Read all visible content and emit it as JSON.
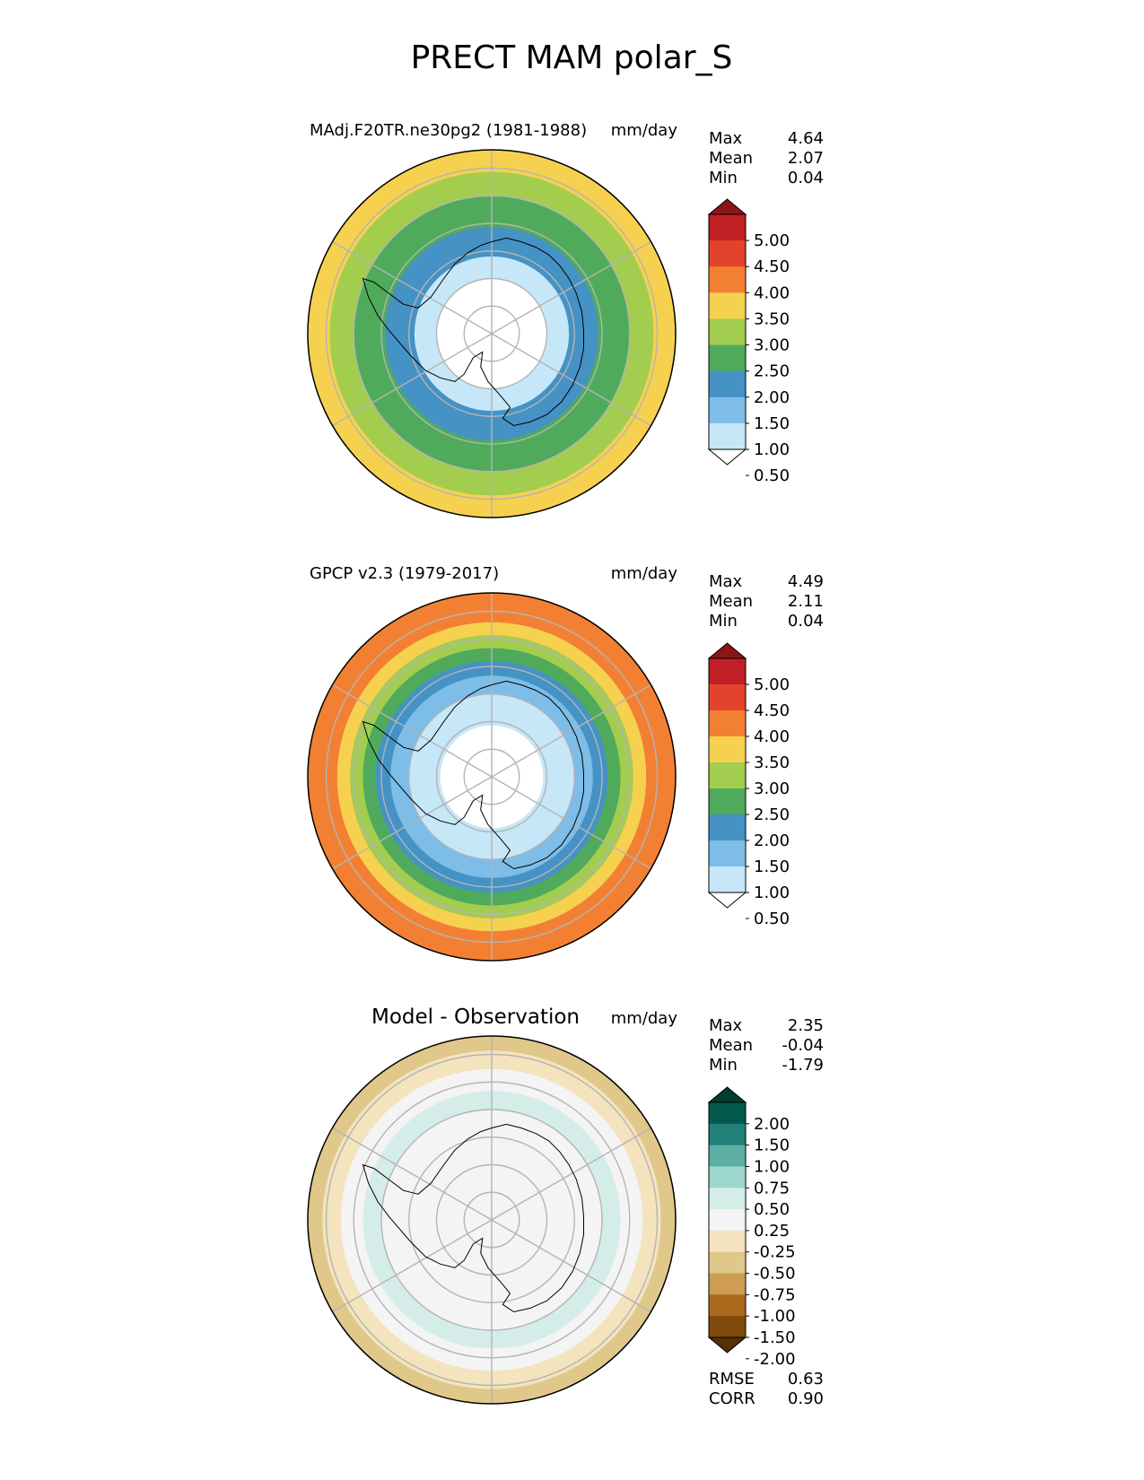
{
  "figure_title": "PRECT MAM polar_S",
  "colors": {
    "precip_levels": [
      "#ffffff",
      "#c6e7f8",
      "#7dbde8",
      "#4592c5",
      "#4fab5b",
      "#a3cd4e",
      "#f6d14f",
      "#f38032",
      "#e2432d",
      "#c11f26",
      "#8c1517"
    ],
    "diff_levels": [
      "#543005",
      "#7f4b0a",
      "#ab6a1e",
      "#cd9d53",
      "#e0c88a",
      "#f3e4be",
      "#f4f4f4",
      "#d4ede8",
      "#9ed8cc",
      "#5cb0a3",
      "#218078",
      "#02584c",
      "#003c30"
    ],
    "grid": "#b4b4b4",
    "coast": "#000000"
  },
  "chart_data": [
    {
      "type": "heatmap",
      "projection": "south polar stereographic",
      "title": "MAdj.F20TR.ne30pg2 (1981-1988)",
      "units": "mm/day",
      "stats": [
        {
          "label": "Max",
          "value": "4.64"
        },
        {
          "label": "Mean",
          "value": "2.07"
        },
        {
          "label": "Min",
          "value": "0.04"
        }
      ],
      "colorbar": {
        "levels": [
          "5.00",
          "4.50",
          "4.00",
          "3.50",
          "3.00",
          "2.50",
          "2.00",
          "1.50",
          "1.00",
          "0.50"
        ],
        "extend": "both"
      },
      "field": {
        "zones": [
          {
            "from": 0.0,
            "to": 0.3,
            "value": 0.2
          },
          {
            "from": 0.3,
            "to": 0.42,
            "value": 0.8
          },
          {
            "from": 0.42,
            "to": 0.58,
            "value": 1.7
          },
          {
            "from": 0.58,
            "to": 0.75,
            "value": 2.2
          },
          {
            "from": 0.75,
            "to": 0.88,
            "value": 2.8
          },
          {
            "from": 0.88,
            "to": 1.0,
            "value": 3.3
          }
        ]
      }
    },
    {
      "type": "heatmap",
      "projection": "south polar stereographic",
      "title": "GPCP v2.3 (1979-2017)",
      "units": "mm/day",
      "stats": [
        {
          "label": "Max",
          "value": "4.49"
        },
        {
          "label": "Mean",
          "value": "2.11"
        },
        {
          "label": "Min",
          "value": "0.04"
        }
      ],
      "colorbar": {
        "levels": [
          "5.00",
          "4.50",
          "4.00",
          "3.50",
          "3.00",
          "2.50",
          "2.00",
          "1.50",
          "1.00",
          "0.50"
        ],
        "extend": "both"
      },
      "field": {
        "zones": [
          {
            "from": 0.0,
            "to": 0.28,
            "value": 0.2
          },
          {
            "from": 0.28,
            "to": 0.45,
            "value": 0.8
          },
          {
            "from": 0.45,
            "to": 0.55,
            "value": 1.3
          },
          {
            "from": 0.55,
            "to": 0.63,
            "value": 1.7
          },
          {
            "from": 0.63,
            "to": 0.7,
            "value": 2.2
          },
          {
            "from": 0.7,
            "to": 0.77,
            "value": 2.8
          },
          {
            "from": 0.77,
            "to": 0.84,
            "value": 3.3
          },
          {
            "from": 0.84,
            "to": 1.0,
            "value": 3.8
          }
        ]
      }
    },
    {
      "type": "heatmap",
      "projection": "south polar stereographic",
      "title": "Model - Observation",
      "units": "mm/day",
      "stats": [
        {
          "label": "Max",
          "value": "2.35"
        },
        {
          "label": "Mean",
          "value": "-0.04"
        },
        {
          "label": "Min",
          "value": "-1.79"
        }
      ],
      "colorbar": {
        "levels": [
          "2.00",
          "1.50",
          "1.00",
          "0.75",
          "0.50",
          "0.25",
          "-0.25",
          "-0.50",
          "-0.75",
          "-1.00",
          "-1.50",
          "-2.00"
        ],
        "extend": "both"
      },
      "field": {
        "zones": [
          {
            "from": 0.0,
            "to": 0.6,
            "value": 0.0
          },
          {
            "from": 0.6,
            "to": 0.7,
            "value": 0.4
          },
          {
            "from": 0.7,
            "to": 0.82,
            "value": 0.0
          },
          {
            "from": 0.82,
            "to": 0.92,
            "value": -0.4
          },
          {
            "from": 0.92,
            "to": 1.0,
            "value": -0.7
          }
        ]
      },
      "metrics": [
        {
          "label": "RMSE",
          "value": "0.63"
        },
        {
          "label": "CORR",
          "value": "0.90"
        }
      ]
    }
  ]
}
